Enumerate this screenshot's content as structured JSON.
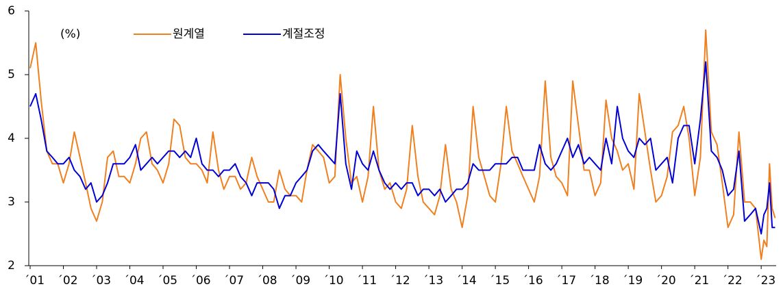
{
  "chart_data": {
    "type": "line",
    "unit": "(%)",
    "x": [
      2001,
      2001.17,
      2001.33,
      2001.5,
      2001.67,
      2001.83,
      2002,
      2002.17,
      2002.33,
      2002.5,
      2002.67,
      2002.83,
      2003,
      2003.17,
      2003.33,
      2003.5,
      2003.67,
      2003.83,
      2004,
      2004.17,
      2004.33,
      2004.5,
      2004.67,
      2004.83,
      2005,
      2005.17,
      2005.33,
      2005.5,
      2005.67,
      2005.83,
      2006,
      2006.17,
      2006.33,
      2006.5,
      2006.67,
      2006.83,
      2007,
      2007.17,
      2007.33,
      2007.5,
      2007.67,
      2007.83,
      2008,
      2008.17,
      2008.33,
      2008.5,
      2008.67,
      2008.83,
      2009,
      2009.17,
      2009.33,
      2009.5,
      2009.67,
      2009.83,
      2010,
      2010.17,
      2010.33,
      2010.5,
      2010.67,
      2010.83,
      2011,
      2011.17,
      2011.33,
      2011.5,
      2011.67,
      2011.83,
      2012,
      2012.17,
      2012.33,
      2012.5,
      2012.67,
      2012.83,
      2013,
      2013.17,
      2013.33,
      2013.5,
      2013.67,
      2013.83,
      2014,
      2014.17,
      2014.33,
      2014.5,
      2014.67,
      2014.83,
      2015,
      2015.17,
      2015.33,
      2015.5,
      2015.67,
      2015.83,
      2016,
      2016.17,
      2016.33,
      2016.5,
      2016.67,
      2016.83,
      2017,
      2017.17,
      2017.33,
      2017.5,
      2017.67,
      2017.83,
      2018,
      2018.17,
      2018.33,
      2018.5,
      2018.67,
      2018.83,
      2019,
      2019.17,
      2019.33,
      2019.5,
      2019.67,
      2019.83,
      2020,
      2020.17,
      2020.33,
      2020.5,
      2020.67,
      2020.83,
      2021,
      2021.17,
      2021.33,
      2021.5,
      2021.67,
      2021.83,
      2022,
      2022.17,
      2022.33,
      2022.5,
      2022.67,
      2022.83,
      2023,
      2023.08,
      2023.17,
      2023.25,
      2023.33,
      2023.42
    ],
    "series": [
      {
        "name": "원계열",
        "color": "#f07f1e",
        "values": [
          5.1,
          5.5,
          4.6,
          3.8,
          3.6,
          3.6,
          3.3,
          3.6,
          4.1,
          3.7,
          3.3,
          2.9,
          2.7,
          3.0,
          3.7,
          3.8,
          3.4,
          3.4,
          3.3,
          3.6,
          4.0,
          4.1,
          3.6,
          3.5,
          3.3,
          3.6,
          4.3,
          4.2,
          3.7,
          3.6,
          3.6,
          3.5,
          3.3,
          4.1,
          3.5,
          3.2,
          3.4,
          3.4,
          3.2,
          3.3,
          3.7,
          3.4,
          3.2,
          3.0,
          3.0,
          3.5,
          3.2,
          3.1,
          3.1,
          3.0,
          3.5,
          3.9,
          3.8,
          3.7,
          3.3,
          3.4,
          5.0,
          4.0,
          3.3,
          3.4,
          3.0,
          3.4,
          4.5,
          3.5,
          3.2,
          3.3,
          3.0,
          2.9,
          3.2,
          4.2,
          3.4,
          3.0,
          2.9,
          2.8,
          3.1,
          3.9,
          3.2,
          3.0,
          2.6,
          3.1,
          4.5,
          3.7,
          3.4,
          3.1,
          3.0,
          3.6,
          4.5,
          3.8,
          3.6,
          3.4,
          3.2,
          3.0,
          3.4,
          4.9,
          3.7,
          3.4,
          3.3,
          3.1,
          4.9,
          4.2,
          3.5,
          3.5,
          3.1,
          3.3,
          4.6,
          4.0,
          3.8,
          3.5,
          3.6,
          3.2,
          4.7,
          4.1,
          3.5,
          3.0,
          3.1,
          3.4,
          4.1,
          4.2,
          4.5,
          4.0,
          3.1,
          3.7,
          5.7,
          4.1,
          3.9,
          3.3,
          2.6,
          2.8,
          4.1,
          3.0,
          3.0,
          2.9,
          2.1,
          2.4,
          2.3,
          3.6,
          2.9,
          2.75
        ]
      },
      {
        "name": "계절조정",
        "color": "#0000d4",
        "values": [
          4.5,
          4.7,
          4.3,
          3.8,
          3.7,
          3.6,
          3.6,
          3.7,
          3.5,
          3.4,
          3.2,
          3.3,
          3.0,
          3.1,
          3.3,
          3.6,
          3.6,
          3.6,
          3.7,
          3.9,
          3.5,
          3.6,
          3.7,
          3.6,
          3.7,
          3.8,
          3.8,
          3.7,
          3.8,
          3.7,
          4.0,
          3.6,
          3.5,
          3.5,
          3.4,
          3.5,
          3.5,
          3.6,
          3.4,
          3.3,
          3.1,
          3.3,
          3.3,
          3.3,
          3.2,
          2.9,
          3.1,
          3.1,
          3.3,
          3.4,
          3.5,
          3.8,
          3.9,
          3.8,
          3.7,
          3.6,
          4.7,
          3.6,
          3.2,
          3.8,
          3.6,
          3.5,
          3.8,
          3.5,
          3.3,
          3.2,
          3.3,
          3.2,
          3.3,
          3.3,
          3.1,
          3.2,
          3.2,
          3.1,
          3.2,
          3.0,
          3.1,
          3.2,
          3.2,
          3.3,
          3.6,
          3.5,
          3.5,
          3.5,
          3.6,
          3.6,
          3.6,
          3.7,
          3.7,
          3.5,
          3.5,
          3.5,
          3.9,
          3.6,
          3.5,
          3.6,
          3.8,
          4.0,
          3.7,
          3.9,
          3.6,
          3.7,
          3.6,
          3.5,
          4.0,
          3.6,
          4.5,
          4.0,
          3.8,
          3.7,
          4.0,
          3.9,
          4.0,
          3.5,
          3.6,
          3.7,
          3.3,
          4.0,
          4.2,
          4.2,
          3.6,
          4.3,
          5.2,
          3.8,
          3.7,
          3.5,
          3.1,
          3.2,
          3.8,
          2.7,
          2.8,
          2.9,
          2.5,
          2.8,
          2.9,
          3.3,
          2.6,
          2.6
        ]
      }
    ],
    "xlim": [
      2001,
      2023.45
    ],
    "xticks": [
      {
        "value": 2001,
        "label": "´01"
      },
      {
        "value": 2002,
        "label": "´02"
      },
      {
        "value": 2003,
        "label": "´03"
      },
      {
        "value": 2004,
        "label": "´04"
      },
      {
        "value": 2005,
        "label": "´05"
      },
      {
        "value": 2006,
        "label": "´06"
      },
      {
        "value": 2007,
        "label": "´07"
      },
      {
        "value": 2008,
        "label": "´08"
      },
      {
        "value": 2009,
        "label": "´09"
      },
      {
        "value": 2010,
        "label": "´10"
      },
      {
        "value": 2011,
        "label": "´11"
      },
      {
        "value": 2012,
        "label": "´12"
      },
      {
        "value": 2013,
        "label": "´13"
      },
      {
        "value": 2014,
        "label": "´14"
      },
      {
        "value": 2015,
        "label": "´15"
      },
      {
        "value": 2016,
        "label": "´16"
      },
      {
        "value": 2017,
        "label": "´17"
      },
      {
        "value": 2018,
        "label": "´18"
      },
      {
        "value": 2019,
        "label": "´19"
      },
      {
        "value": 2020,
        "label": "´20"
      },
      {
        "value": 2021,
        "label": "´21"
      },
      {
        "value": 2022,
        "label": "´22"
      },
      {
        "value": 2023,
        "label": "´23"
      }
    ],
    "ylim": [
      2,
      6
    ],
    "yticks": [
      2,
      3,
      4,
      5,
      6
    ],
    "grid": false,
    "legend": "top-left"
  }
}
